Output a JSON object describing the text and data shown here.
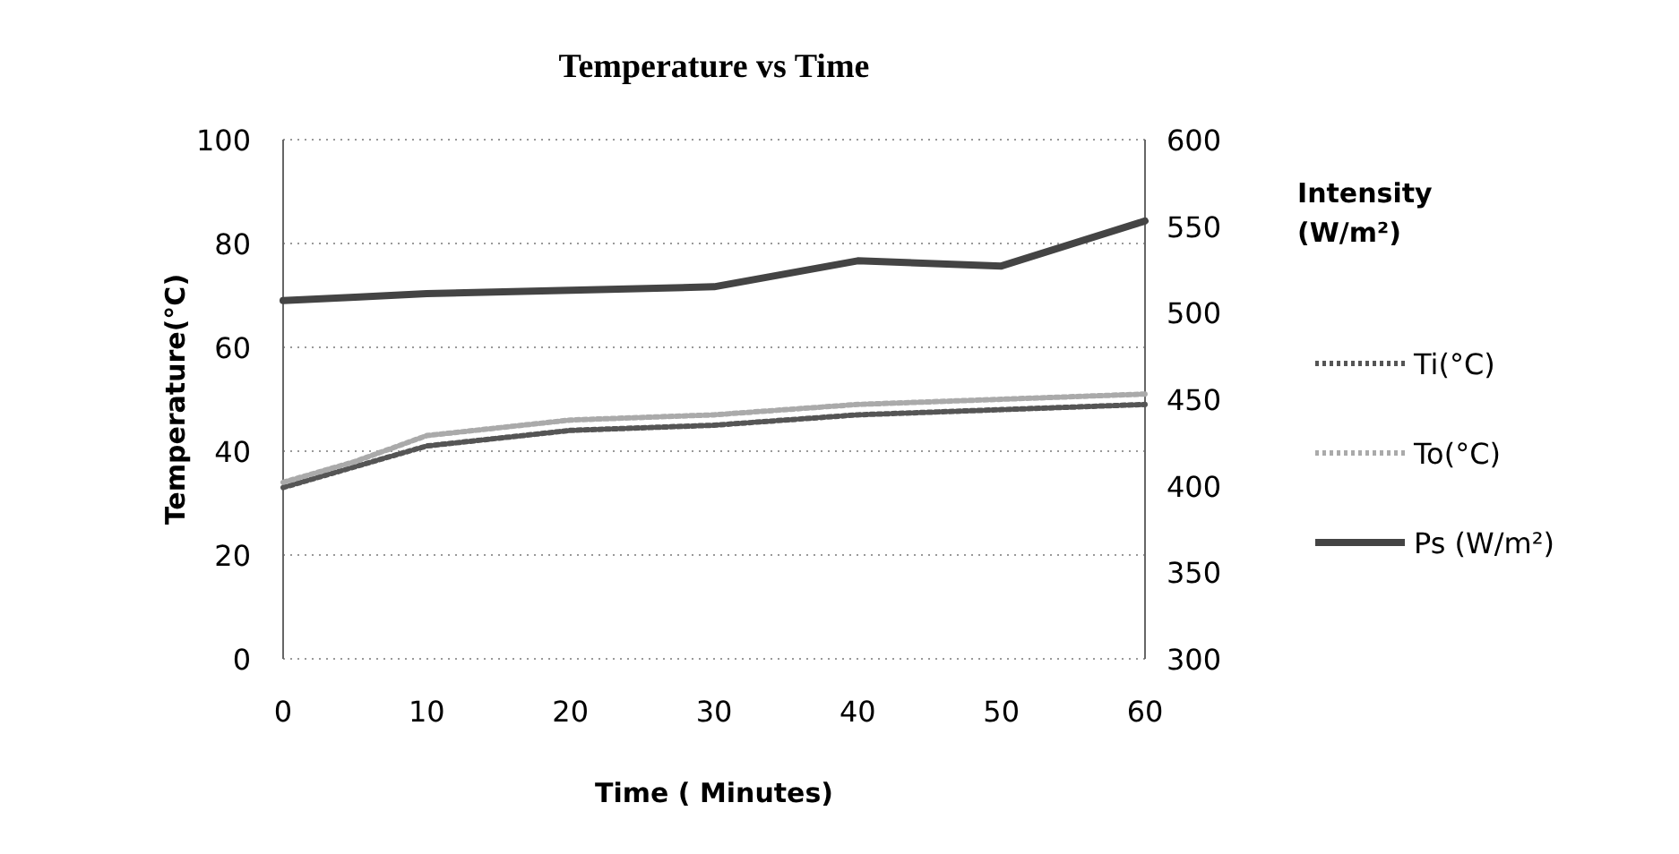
{
  "chart_data": {
    "type": "line",
    "title": "Temperature vs Time",
    "xlabel": "Time ( Minutes)",
    "ylabel": "Temperature(°C)",
    "y2label": "Intensity (W/m²)",
    "x": [
      0,
      5,
      10,
      20,
      30,
      40,
      50,
      60
    ],
    "series": [
      {
        "name": "Ti(°C)",
        "color": "#555555",
        "line_style": "dotted",
        "values": [
          33,
          37,
          41,
          44,
          45,
          47,
          48,
          49
        ]
      },
      {
        "name": "To(°C)",
        "color": "#aaaaaa",
        "line_style": "dotted",
        "values": [
          34,
          38,
          43,
          46,
          47,
          49,
          50,
          51
        ]
      },
      {
        "name": "Ps (W/m²)",
        "color": "#444444",
        "line_style": "solid",
        "axis": "y2",
        "values": [
          507,
          509,
          511,
          513,
          515,
          530,
          527,
          553
        ]
      }
    ],
    "xlim": [
      0,
      60
    ],
    "xticks": [
      0,
      10,
      20,
      30,
      40,
      50,
      60
    ],
    "ylim": [
      0,
      100
    ],
    "yticks": [
      0,
      20,
      40,
      60,
      80,
      100
    ],
    "y2lim": [
      300,
      600
    ],
    "y2ticks": [
      300,
      350,
      400,
      450,
      500,
      550,
      600
    ],
    "grid": "y",
    "legend": "right"
  }
}
